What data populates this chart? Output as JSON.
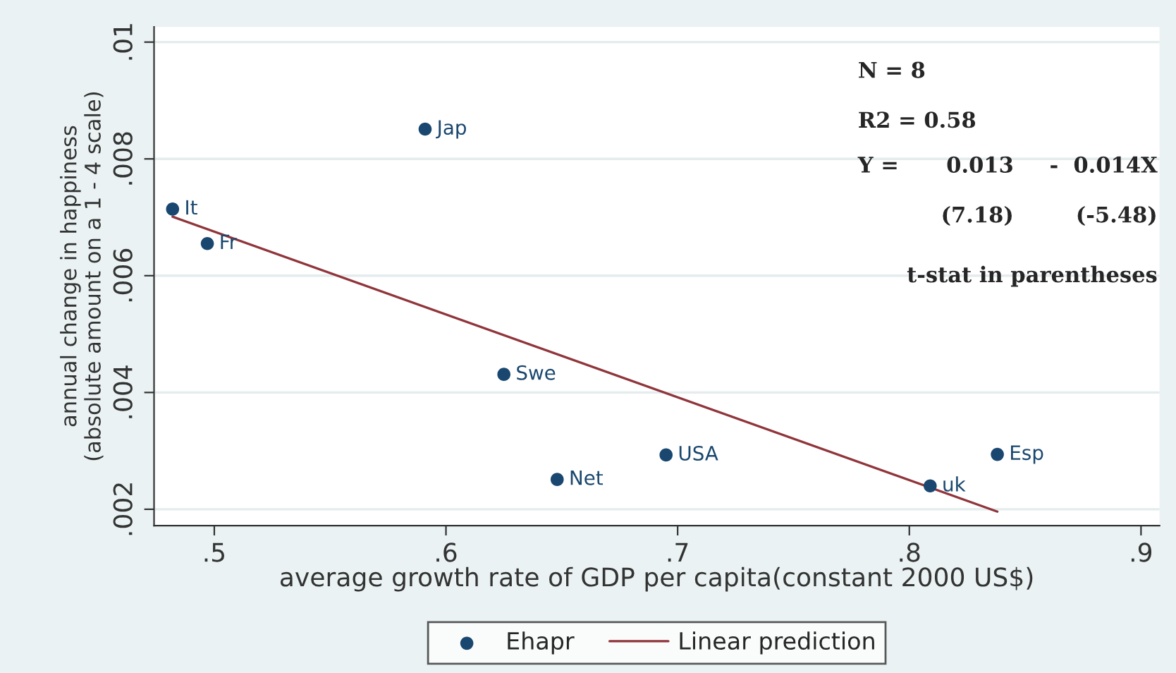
{
  "chart_data": {
    "type": "scatter",
    "xlabel": "average growth rate of GDP per capita(constant 2000 US$)",
    "ylabel": "annual change in happiness\n(absolute amount on a 1 - 4 scale)",
    "series": [
      {
        "name": "Ehapr",
        "color": "#1a476f",
        "marker": "circle",
        "x": [
          0.482,
          0.497,
          0.591,
          0.625,
          0.648,
          0.695,
          0.838,
          0.809
        ],
        "values": [
          0.00714,
          0.00655,
          0.00851,
          0.00431,
          0.00251,
          0.00293,
          0.00294,
          0.0024
        ]
      },
      {
        "name": "Linear prediction",
        "type": "line",
        "color": "#90353b",
        "line_style": "solid",
        "x": [
          0.482,
          0.838
        ],
        "values": [
          0.00701,
          0.00196
        ]
      }
    ],
    "xlim": [
      0.474,
      0.908
    ],
    "xticks": [
      {
        "value": 0.5,
        "label": ".5"
      },
      {
        "value": 0.6,
        "label": ".6"
      },
      {
        "value": 0.7,
        "label": ".7"
      },
      {
        "value": 0.8,
        "label": ".8"
      },
      {
        "value": 0.9,
        "label": ".9"
      }
    ],
    "ylim": [
      0.00172,
      0.01026
    ],
    "yticks": [
      {
        "value": 0.002,
        "label": ".002"
      },
      {
        "value": 0.004,
        "label": ".004"
      },
      {
        "value": 0.006,
        "label": ".006"
      },
      {
        "value": 0.008,
        "label": ".008"
      },
      {
        "value": 0.01,
        "label": ".01"
      }
    ],
    "grid": "y",
    "legend": "bottom",
    "annotations": [
      {
        "text": "It",
        "x": 0.482,
        "y": 0.00714
      },
      {
        "text": "Fr",
        "x": 0.497,
        "y": 0.00655
      },
      {
        "text": "Jap",
        "x": 0.591,
        "y": 0.00851
      },
      {
        "text": "Swe",
        "x": 0.625,
        "y": 0.00431
      },
      {
        "text": "Net",
        "x": 0.648,
        "y": 0.00251
      },
      {
        "text": "USA",
        "x": 0.695,
        "y": 0.00293
      },
      {
        "text": "Esp",
        "x": 0.838,
        "y": 0.00294
      },
      {
        "text": "uk",
        "x": 0.809,
        "y": 0.0024
      },
      "N = 8",
      "R2 = 0.58",
      "Y =",
      "0.013",
      "-",
      "0.014X",
      "(7.18)",
      "(-5.48)",
      "t-stat in parentheses"
    ]
  }
}
